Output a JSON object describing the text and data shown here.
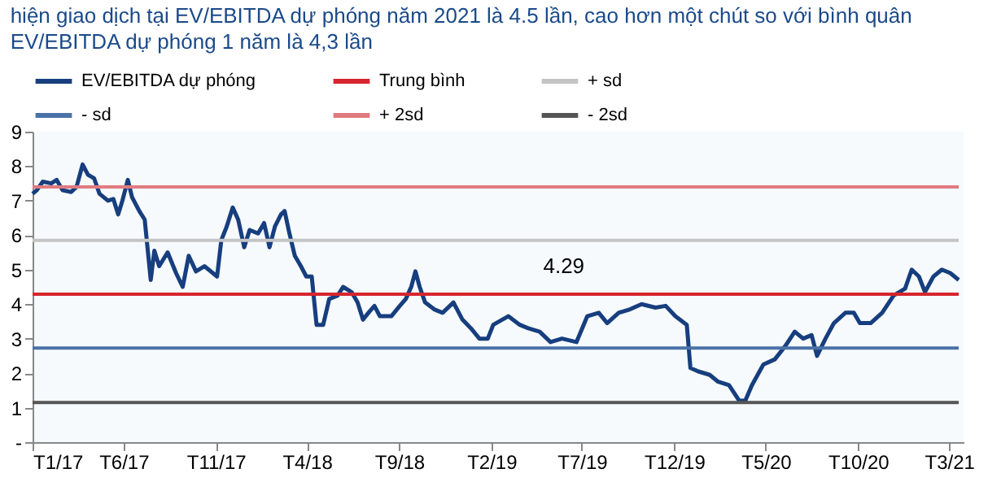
{
  "chart_data": {
    "type": "line",
    "title": "hiện giao dịch tại EV/EBITDA dự phóng năm 2021 là 4.5 lần, cao hơn một chút so với bình quân EV/EBITDA dự phóng 1 năm là 4,3 lần",
    "xlim": [
      "2017-01-01",
      "2021-03-25"
    ],
    "xticks": [
      {
        "value": "2017-01-01",
        "label": "T1/17"
      },
      {
        "value": "2017-06-01",
        "label": "T6/17"
      },
      {
        "value": "2017-11-01",
        "label": "T11/17"
      },
      {
        "value": "2018-04-01",
        "label": "T4/18"
      },
      {
        "value": "2018-09-01",
        "label": "T9/18"
      },
      {
        "value": "2019-02-01",
        "label": "T2/19"
      },
      {
        "value": "2019-07-01",
        "label": "T7/19"
      },
      {
        "value": "2019-12-01",
        "label": "T12/19"
      },
      {
        "value": "2020-05-01",
        "label": "T5/20"
      },
      {
        "value": "2020-10-01",
        "label": "T10/20"
      },
      {
        "value": "2021-03-01",
        "label": "T3/21"
      }
    ],
    "ylim": [
      0,
      9
    ],
    "yticks": [
      {
        "value": 0,
        "label": "-"
      },
      1,
      2,
      3,
      4,
      5,
      6,
      7,
      8,
      9
    ],
    "legend": "top",
    "grid": false,
    "annotations": [
      {
        "text": "4.29",
        "x": "2019-06-01",
        "y": 4.29
      }
    ],
    "series": [
      {
        "name": "EV/EBITDA dự phóng",
        "color": "#173e7e",
        "x": [
          "2017-01-01",
          "2017-01-08",
          "2017-01-18",
          "2017-02-01",
          "2017-02-10",
          "2017-02-20",
          "2017-03-06",
          "2017-03-15",
          "2017-03-25",
          "2017-04-03",
          "2017-04-13",
          "2017-04-22",
          "2017-05-06",
          "2017-05-15",
          "2017-05-23",
          "2017-05-30",
          "2017-06-08",
          "2017-06-15",
          "2017-06-27",
          "2017-07-06",
          "2017-07-16",
          "2017-07-22",
          "2017-07-30",
          "2017-08-13",
          "2017-08-27",
          "2017-09-07",
          "2017-09-17",
          "2017-09-29",
          "2017-10-13",
          "2017-10-27",
          "2017-11-03",
          "2017-11-10",
          "2017-11-19",
          "2017-11-29",
          "2017-12-08",
          "2017-12-18",
          "2017-12-27",
          "2018-01-10",
          "2018-01-20",
          "2018-01-29",
          "2018-02-07",
          "2018-02-17",
          "2018-02-23",
          "2018-03-03",
          "2018-03-12",
          "2018-03-22",
          "2018-03-31",
          "2018-04-09",
          "2018-04-17",
          "2018-04-28",
          "2018-05-08",
          "2018-05-22",
          "2018-05-31",
          "2018-06-14",
          "2018-06-24",
          "2018-07-03",
          "2018-07-12",
          "2018-07-22",
          "2018-07-31",
          "2018-08-19",
          "2018-09-02",
          "2018-09-12",
          "2018-09-21",
          "2018-09-28",
          "2018-10-05",
          "2018-10-14",
          "2018-10-29",
          "2018-11-12",
          "2018-11-30",
          "2018-12-15",
          "2018-12-29",
          "2019-01-12",
          "2019-01-26",
          "2019-02-04",
          "2019-03-01",
          "2019-03-20",
          "2019-04-03",
          "2019-04-22",
          "2019-05-10",
          "2019-05-29",
          "2019-06-22",
          "2019-07-10",
          "2019-07-29",
          "2019-08-12",
          "2019-08-31",
          "2019-09-19",
          "2019-10-08",
          "2019-10-31",
          "2019-11-17",
          "2019-12-03",
          "2019-12-22",
          "2019-12-28",
          "2020-01-10",
          "2020-01-29",
          "2020-02-12",
          "2020-03-01",
          "2020-03-18",
          "2020-03-28",
          "2020-04-08",
          "2020-04-27",
          "2020-05-16",
          "2020-06-03",
          "2020-06-18",
          "2020-07-02",
          "2020-07-16",
          "2020-07-25",
          "2020-08-08",
          "2020-08-22",
          "2020-09-10",
          "2020-09-24",
          "2020-10-04",
          "2020-10-22",
          "2020-11-10",
          "2020-11-29",
          "2020-12-18",
          "2020-12-29",
          "2021-01-10",
          "2021-01-20",
          "2021-02-03",
          "2021-02-17",
          "2021-03-03",
          "2021-03-17"
        ],
        "values": [
          7.2,
          7.3,
          7.55,
          7.5,
          7.6,
          7.3,
          7.25,
          7.4,
          8.05,
          7.75,
          7.65,
          7.2,
          7.0,
          7.05,
          6.6,
          7.0,
          7.6,
          7.1,
          6.7,
          6.45,
          4.7,
          5.55,
          5.1,
          5.5,
          4.9,
          4.5,
          5.4,
          4.95,
          5.1,
          4.9,
          4.8,
          5.85,
          6.25,
          6.8,
          6.45,
          5.65,
          6.15,
          6.05,
          6.35,
          5.65,
          6.25,
          6.6,
          6.7,
          6.05,
          5.4,
          5.1,
          4.8,
          4.8,
          3.4,
          3.4,
          4.15,
          4.25,
          4.5,
          4.35,
          4.05,
          3.55,
          3.75,
          3.95,
          3.65,
          3.65,
          3.95,
          4.15,
          4.5,
          4.95,
          4.5,
          4.05,
          3.85,
          3.75,
          4.05,
          3.55,
          3.3,
          3.0,
          3.0,
          3.4,
          3.65,
          3.4,
          3.3,
          3.2,
          2.9,
          3.0,
          2.9,
          3.65,
          3.75,
          3.45,
          3.75,
          3.85,
          4.0,
          3.9,
          3.95,
          3.65,
          3.4,
          2.15,
          2.05,
          1.95,
          1.75,
          1.65,
          1.2,
          1.2,
          1.65,
          2.25,
          2.4,
          2.8,
          3.2,
          3.0,
          3.1,
          2.5,
          3.0,
          3.45,
          3.75,
          3.75,
          3.45,
          3.45,
          3.75,
          4.25,
          4.45,
          5.0,
          4.8,
          4.35,
          4.8,
          5.0,
          4.9,
          4.7
        ]
      },
      {
        "name": "Trung bình",
        "color": "#d7262e",
        "x": [
          "2017-01-01",
          "2021-03-17"
        ],
        "values": [
          4.29,
          4.29
        ]
      },
      {
        "name": "+ sd",
        "color": "#c4c4c4",
        "x": [
          "2017-01-01",
          "2021-03-17"
        ],
        "values": [
          5.85,
          5.85
        ]
      },
      {
        "name": "- sd",
        "color": "#4a72a8",
        "x": [
          "2017-01-01",
          "2021-03-17"
        ],
        "values": [
          2.73,
          2.73
        ]
      },
      {
        "name": "+ 2sd",
        "color": "#e07b80",
        "x": [
          "2017-01-01",
          "2021-03-17"
        ],
        "values": [
          7.4,
          7.4
        ]
      },
      {
        "name": "- 2sd",
        "color": "#555555",
        "x": [
          "2017-01-01",
          "2021-03-17"
        ],
        "values": [
          1.15,
          1.15
        ]
      }
    ]
  }
}
